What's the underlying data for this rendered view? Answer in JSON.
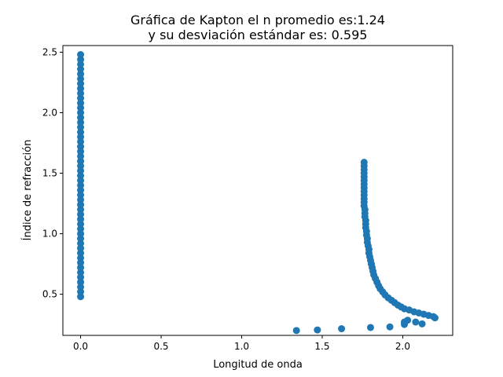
{
  "chart_data": {
    "type": "scatter",
    "title_line1": "Gráfica de Kapton el n promedio es:1.24",
    "title_line2": "y su desviación estándar es: 0.595",
    "xlabel": "Longitud de onda",
    "ylabel": "Índice de refracción",
    "xlim": [
      -0.11,
      2.31
    ],
    "ylim": [
      0.16,
      2.555
    ],
    "xticks": [
      {
        "value": 0.0,
        "label": "0.0"
      },
      {
        "value": 0.5,
        "label": "0.5"
      },
      {
        "value": 1.0,
        "label": "1.0"
      },
      {
        "value": 1.5,
        "label": "1.5"
      },
      {
        "value": 2.0,
        "label": "2.0"
      }
    ],
    "yticks": [
      {
        "value": 0.5,
        "label": "0.5"
      },
      {
        "value": 1.0,
        "label": "1.0"
      },
      {
        "value": 1.5,
        "label": "1.5"
      },
      {
        "value": 2.0,
        "label": "2.0"
      },
      {
        "value": 2.5,
        "label": "2.5"
      }
    ],
    "grid": false,
    "series": [
      {
        "color": "#1f77b4",
        "points": [
          [
            0.0,
            0.48
          ],
          [
            0.0,
            0.52
          ],
          [
            0.0,
            0.56
          ],
          [
            0.0,
            0.6
          ],
          [
            0.0,
            0.64
          ],
          [
            0.0,
            0.68
          ],
          [
            0.0,
            0.72
          ],
          [
            0.0,
            0.76
          ],
          [
            0.0,
            0.8
          ],
          [
            0.0,
            0.84
          ],
          [
            0.0,
            0.88
          ],
          [
            0.0,
            0.92
          ],
          [
            0.0,
            0.96
          ],
          [
            0.0,
            1.0
          ],
          [
            0.0,
            1.04
          ],
          [
            0.0,
            1.08
          ],
          [
            0.0,
            1.12
          ],
          [
            0.0,
            1.16
          ],
          [
            0.0,
            1.2
          ],
          [
            0.0,
            1.24
          ],
          [
            0.0,
            1.28
          ],
          [
            0.0,
            1.32
          ],
          [
            0.0,
            1.36
          ],
          [
            0.0,
            1.4
          ],
          [
            0.0,
            1.44
          ],
          [
            0.0,
            1.48
          ],
          [
            0.0,
            1.52
          ],
          [
            0.0,
            1.56
          ],
          [
            0.0,
            1.6
          ],
          [
            0.0,
            1.64
          ],
          [
            0.0,
            1.68
          ],
          [
            0.0,
            1.72
          ],
          [
            0.0,
            1.76
          ],
          [
            0.0,
            1.8
          ],
          [
            0.0,
            1.84
          ],
          [
            0.0,
            1.88
          ],
          [
            0.0,
            1.92
          ],
          [
            0.0,
            1.96
          ],
          [
            0.0,
            2.0
          ],
          [
            0.0,
            2.04
          ],
          [
            0.0,
            2.08
          ],
          [
            0.0,
            2.12
          ],
          [
            0.0,
            2.16
          ],
          [
            0.0,
            2.2
          ],
          [
            0.0,
            2.24
          ],
          [
            0.0,
            2.28
          ],
          [
            0.0,
            2.32
          ],
          [
            0.0,
            2.36
          ],
          [
            0.0,
            2.4
          ],
          [
            0.0,
            2.44
          ],
          [
            0.0,
            2.48
          ],
          [
            1.76,
            1.59
          ],
          [
            1.76,
            1.56
          ],
          [
            1.76,
            1.53
          ],
          [
            1.76,
            1.5
          ],
          [
            1.76,
            1.47
          ],
          [
            1.76,
            1.44
          ],
          [
            1.76,
            1.41
          ],
          [
            1.76,
            1.38
          ],
          [
            1.76,
            1.35
          ],
          [
            1.76,
            1.32
          ],
          [
            1.76,
            1.29
          ],
          [
            1.76,
            1.26
          ],
          [
            1.76,
            1.23
          ],
          [
            1.765,
            1.2
          ],
          [
            1.765,
            1.17
          ],
          [
            1.765,
            1.14
          ],
          [
            1.77,
            1.11
          ],
          [
            1.77,
            1.08
          ],
          [
            1.77,
            1.05
          ],
          [
            1.775,
            1.02
          ],
          [
            1.775,
            0.99
          ],
          [
            1.78,
            0.96
          ],
          [
            1.78,
            0.93
          ],
          [
            1.785,
            0.9
          ],
          [
            1.79,
            0.87
          ],
          [
            1.79,
            0.84
          ],
          [
            1.795,
            0.81
          ],
          [
            1.8,
            0.78
          ],
          [
            1.805,
            0.75
          ],
          [
            1.81,
            0.72
          ],
          [
            1.815,
            0.69
          ],
          [
            1.82,
            0.66
          ],
          [
            1.83,
            0.63
          ],
          [
            1.84,
            0.6
          ],
          [
            1.85,
            0.57
          ],
          [
            1.86,
            0.545
          ],
          [
            1.875,
            0.52
          ],
          [
            1.89,
            0.495
          ],
          [
            1.91,
            0.47
          ],
          [
            1.93,
            0.45
          ],
          [
            1.95,
            0.43
          ],
          [
            1.97,
            0.41
          ],
          [
            1.99,
            0.395
          ],
          [
            2.01,
            0.38
          ],
          [
            2.04,
            0.37
          ],
          [
            2.07,
            0.355
          ],
          [
            2.1,
            0.345
          ],
          [
            2.13,
            0.335
          ],
          [
            2.16,
            0.325
          ],
          [
            2.19,
            0.315
          ],
          [
            2.2,
            0.305
          ],
          [
            1.34,
            0.2
          ],
          [
            1.47,
            0.205
          ],
          [
            1.62,
            0.215
          ],
          [
            1.8,
            0.225
          ],
          [
            1.92,
            0.23
          ],
          [
            2.01,
            0.25
          ],
          [
            2.01,
            0.27
          ],
          [
            2.03,
            0.285
          ],
          [
            2.08,
            0.27
          ],
          [
            2.12,
            0.255
          ]
        ]
      }
    ]
  }
}
